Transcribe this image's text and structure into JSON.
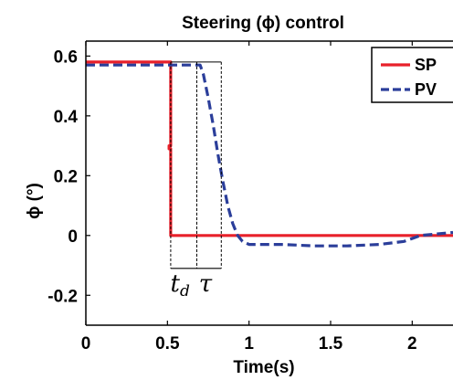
{
  "chart_data": {
    "type": "line",
    "title": "Steering (ϕ) control",
    "xlabel": "Time(s)",
    "ylabel": "ϕ (°)",
    "xlim": [
      0,
      2.25
    ],
    "ylim": [
      -0.3,
      0.65
    ],
    "xticks": [
      0,
      0.5,
      1,
      1.5,
      2
    ],
    "xtick_labels": [
      "0",
      "0.5",
      "1",
      "1.5",
      "2"
    ],
    "yticks": [
      -0.2,
      0,
      0.2,
      0.4,
      0.6
    ],
    "ytick_labels": [
      "-0.2",
      "0",
      "0.2",
      "0.4",
      "0.6"
    ],
    "legend_position": "top-right",
    "series": [
      {
        "name": "SP",
        "color": "#e8202a",
        "style": "solid",
        "x": [
          0,
          0.52,
          0.52,
          0.51,
          0.51,
          0.52,
          0.52,
          2.25
        ],
        "y": [
          0.58,
          0.58,
          0.3,
          0.3,
          0.29,
          0.29,
          0.0,
          0.0
        ]
      },
      {
        "name": "PV",
        "color": "#2b3e9a",
        "style": "dashed",
        "x": [
          0,
          0.68,
          0.7,
          0.72,
          0.75,
          0.78,
          0.81,
          0.84,
          0.87,
          0.9,
          0.93,
          0.96,
          1.0,
          1.2,
          1.4,
          1.6,
          1.8,
          1.95,
          2.0,
          2.05,
          2.25
        ],
        "y": [
          0.57,
          0.57,
          0.57,
          0.54,
          0.46,
          0.37,
          0.27,
          0.18,
          0.1,
          0.04,
          0.0,
          -0.02,
          -0.03,
          -0.03,
          -0.035,
          -0.035,
          -0.03,
          -0.02,
          -0.01,
          0.0,
          0.01
        ]
      }
    ],
    "annotations": [
      {
        "label": "t",
        "subscript": "d",
        "x_start": 0.52,
        "x_end": 0.68
      },
      {
        "label": "τ",
        "x_start": 0.68,
        "x_end": 0.83
      }
    ]
  }
}
